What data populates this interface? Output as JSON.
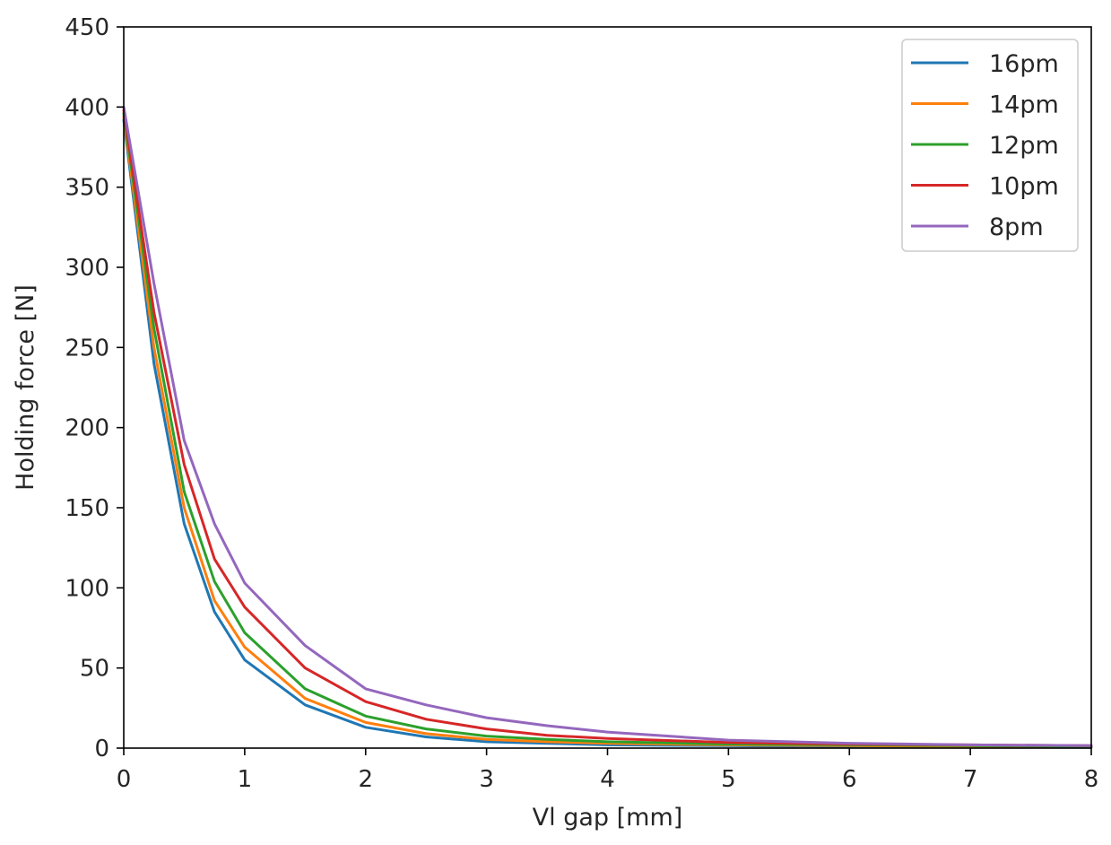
{
  "chart_data": {
    "type": "line",
    "xlabel": "Vl gap [mm]",
    "ylabel": "Holding force [N]",
    "xlim": [
      0,
      8
    ],
    "ylim": [
      0,
      450
    ],
    "xticks": [
      "0",
      "1",
      "2",
      "3",
      "4",
      "5",
      "6",
      "7",
      "8"
    ],
    "yticks": [
      "0",
      "50",
      "100",
      "150",
      "200",
      "250",
      "300",
      "350",
      "400",
      "450"
    ],
    "grid": false,
    "legend_position": "top-right",
    "x": [
      0,
      0.25,
      0.5,
      0.75,
      1,
      1.5,
      2,
      2.5,
      3,
      3.5,
      4,
      5,
      6,
      7,
      8
    ],
    "series": [
      {
        "name": "16pm",
        "color": "#1f77b4",
        "values": [
          392,
          240,
          140,
          85,
          55,
          27,
          13,
          7,
          4,
          3,
          2,
          1.5,
          1,
          0.8,
          0.5
        ]
      },
      {
        "name": "14pm",
        "color": "#ff7f0e",
        "values": [
          394,
          250,
          150,
          92,
          63,
          31,
          16,
          9,
          5.5,
          4,
          3,
          2,
          1.5,
          1,
          0.8
        ]
      },
      {
        "name": "12pm",
        "color": "#2ca02c",
        "values": [
          396,
          262,
          160,
          104,
          72,
          37,
          20,
          12,
          7.5,
          5.5,
          4,
          2.5,
          2,
          1.5,
          1
        ]
      },
      {
        "name": "10pm",
        "color": "#d62728",
        "values": [
          398,
          272,
          177,
          118,
          88,
          50,
          29,
          18,
          12,
          8,
          6,
          3.5,
          2.5,
          2,
          1.5
        ]
      },
      {
        "name": "8pm",
        "color": "#9467bd",
        "values": [
          400,
          290,
          192,
          140,
          103,
          64,
          37,
          27,
          19,
          14,
          10,
          5,
          3,
          2,
          1.5
        ]
      }
    ]
  }
}
